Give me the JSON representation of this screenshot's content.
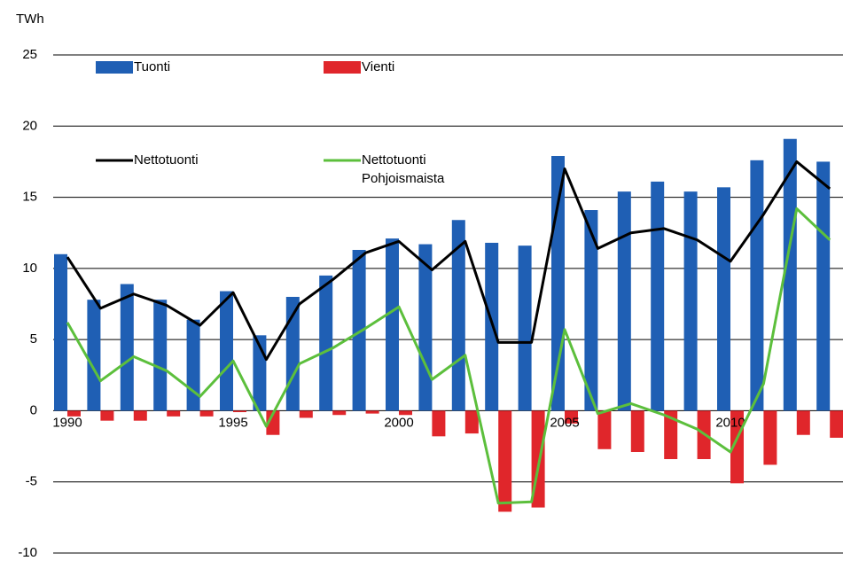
{
  "chart_data": {
    "type": "bar-line",
    "y_label": "TWh",
    "categories": [
      "1990",
      null,
      null,
      null,
      null,
      "1995",
      null,
      null,
      null,
      null,
      "2000",
      null,
      null,
      null,
      null,
      "2005",
      null,
      null,
      null,
      null,
      "2010",
      null,
      null,
      null
    ],
    "series": [
      {
        "name": "Tuonti",
        "kind": "bar",
        "color": "#1f5fb4",
        "values": [
          11.0,
          7.8,
          8.9,
          7.8,
          6.4,
          8.4,
          5.3,
          8.0,
          9.5,
          11.3,
          12.1,
          11.7,
          13.4,
          11.8,
          11.6,
          17.9,
          14.1,
          15.4,
          16.1,
          15.4,
          15.7,
          17.6,
          19.1,
          17.5
        ]
      },
      {
        "name": "Vienti",
        "kind": "bar",
        "color": "#e0262b",
        "values": [
          -0.4,
          -0.7,
          -0.7,
          -0.4,
          -0.4,
          -0.1,
          -1.7,
          -0.5,
          -0.3,
          -0.2,
          -0.3,
          -1.8,
          -1.6,
          -7.1,
          -6.8,
          -0.9,
          -2.7,
          -2.9,
          -3.4,
          -3.4,
          -5.1,
          -3.8,
          -1.7,
          -1.9
        ]
      },
      {
        "name": "Nettotuonti",
        "kind": "line",
        "color": "#000000",
        "values": [
          10.8,
          7.2,
          8.2,
          7.4,
          6.0,
          8.3,
          3.6,
          7.5,
          9.2,
          11.1,
          11.9,
          9.9,
          11.9,
          4.8,
          4.8,
          17.0,
          11.4,
          12.5,
          12.8,
          12.0,
          10.5,
          13.8,
          17.5,
          15.6
        ]
      },
      {
        "name": "Nettotuonti Pohjoismaista",
        "kind": "line",
        "color": "#5cbf3c",
        "values": [
          6.2,
          2.1,
          3.8,
          2.8,
          1.0,
          3.5,
          -1.1,
          3.3,
          4.4,
          5.8,
          7.3,
          2.2,
          3.9,
          -6.5,
          -6.4,
          5.7,
          -0.2,
          0.5,
          -0.3,
          -1.3,
          -2.9,
          1.9,
          14.2,
          12.0
        ]
      }
    ],
    "ylim": [
      -10,
      25
    ],
    "yticks": [
      -10,
      -5,
      0,
      5,
      10,
      15,
      20,
      25
    ],
    "grid": true
  }
}
